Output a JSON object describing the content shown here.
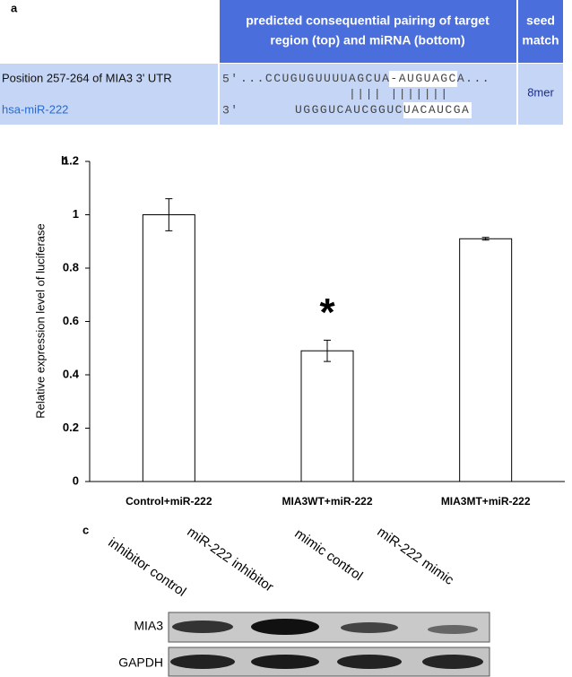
{
  "panel_a": {
    "label": "a",
    "header": {
      "pairing_line1": "predicted consequential pairing of target",
      "pairing_line2": "region (top) and miRNA (bottom)",
      "seed_line1": "seed",
      "seed_line2": "match"
    },
    "row": {
      "target": "Position 257-264 of MIA3 3' UTR",
      "mirna": "hsa-miR-222",
      "target_end": "5'",
      "target_seq": [
        "...CCUGUGUUUUAGCUA-",
        "AUGUAGCA",
        "..."
      ],
      "pairing": "||||  |||||||",
      "mirna_end": "3'",
      "mirna_seq": [
        "UGGGUCAUCGGUC",
        "UACAUCGA"
      ],
      "seed_match": "8mer"
    }
  },
  "chart_data": {
    "type": "bar",
    "panel_label": "b",
    "y_label": "Relative expression level of luciferase",
    "categories": [
      "Control+miR-222",
      "MIA3WT+miR-222",
      "MIA3MT+miR-222"
    ],
    "values": [
      1.0,
      0.49,
      0.91
    ],
    "errors": [
      0.06,
      0.04,
      0.005
    ],
    "color": "#ffffff",
    "edge_color": "#000000",
    "ylim": [
      0,
      1.2
    ],
    "yticks": [
      0,
      0.2,
      0.4,
      0.6,
      0.8,
      1,
      1.2
    ],
    "annotations": [
      {
        "text": "*",
        "category": 1
      }
    ]
  },
  "panel_c": {
    "label": "c",
    "lanes": [
      "inhibitor control",
      "miR-222 inhibitor",
      "mimic control",
      "miR-222 mimic"
    ],
    "rows": [
      "MIA3",
      "GAPDH"
    ]
  }
}
